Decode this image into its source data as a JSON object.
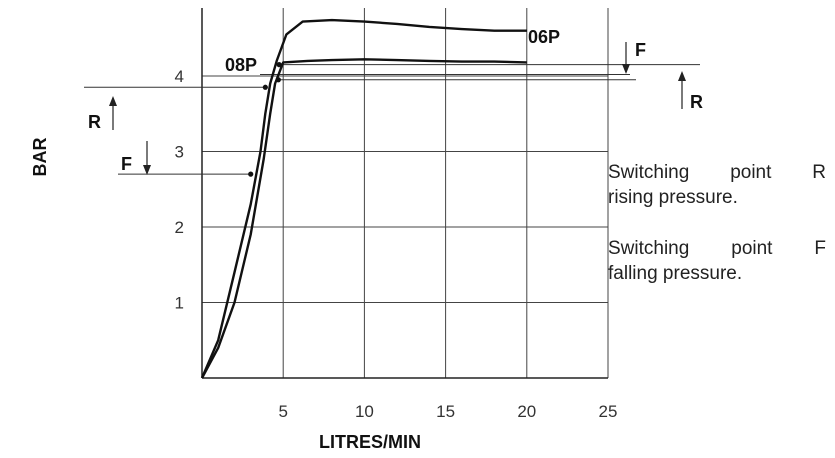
{
  "chart_data": {
    "type": "line",
    "xlabel": "LITRES/MIN",
    "ylabel": "BAR",
    "xlim": [
      0,
      25
    ],
    "ylim": [
      0,
      4.9
    ],
    "x_ticks": [
      "5",
      "10",
      "15",
      "20",
      "25"
    ],
    "y_ticks": [
      "1",
      "2",
      "3",
      "4"
    ],
    "grid": true,
    "series": [
      {
        "name": "06P",
        "points": [
          [
            0,
            0
          ],
          [
            1,
            0.5
          ],
          [
            2,
            1.4
          ],
          [
            3,
            2.3
          ],
          [
            3.6,
            3.0
          ],
          [
            3.9,
            3.5
          ],
          [
            4.2,
            3.9
          ],
          [
            4.6,
            4.2
          ],
          [
            5.2,
            4.55
          ],
          [
            6.2,
            4.72
          ],
          [
            8,
            4.74
          ],
          [
            10,
            4.72
          ],
          [
            12,
            4.69
          ],
          [
            14,
            4.65
          ],
          [
            16,
            4.62
          ],
          [
            18,
            4.6
          ],
          [
            20,
            4.6
          ]
        ]
      },
      {
        "name": "08P",
        "points": [
          [
            0,
            0
          ],
          [
            1,
            0.4
          ],
          [
            2,
            1.0
          ],
          [
            3,
            1.9
          ],
          [
            3.8,
            2.9
          ],
          [
            4.2,
            3.5
          ],
          [
            4.5,
            3.9
          ],
          [
            5,
            4.18
          ],
          [
            6.5,
            4.2
          ],
          [
            8,
            4.21
          ],
          [
            10,
            4.22
          ],
          [
            12,
            4.21
          ],
          [
            14,
            4.2
          ],
          [
            16,
            4.19
          ],
          [
            18,
            4.19
          ],
          [
            20,
            4.18
          ]
        ]
      }
    ],
    "switching_points": [
      {
        "x": 3.0,
        "y": 2.7,
        "name": "F"
      },
      {
        "x": 3.9,
        "y": 3.85,
        "name": "R"
      },
      {
        "x": 4.7,
        "y": 3.95,
        "name": "R"
      },
      {
        "x": 4.75,
        "y": 4.15,
        "name": "F"
      }
    ],
    "annotations": {
      "left_R": "R",
      "left_F": "F",
      "right_F": "F",
      "right_R": "R"
    }
  },
  "notes": {
    "rising": {
      "l1a": "Switching",
      "l1b": "point",
      "l1c": "R",
      "l2": "rising pressure."
    },
    "falling": {
      "l1a": "Switching",
      "l1b": "point",
      "l1c": "F",
      "l2": "falling pressure."
    }
  }
}
